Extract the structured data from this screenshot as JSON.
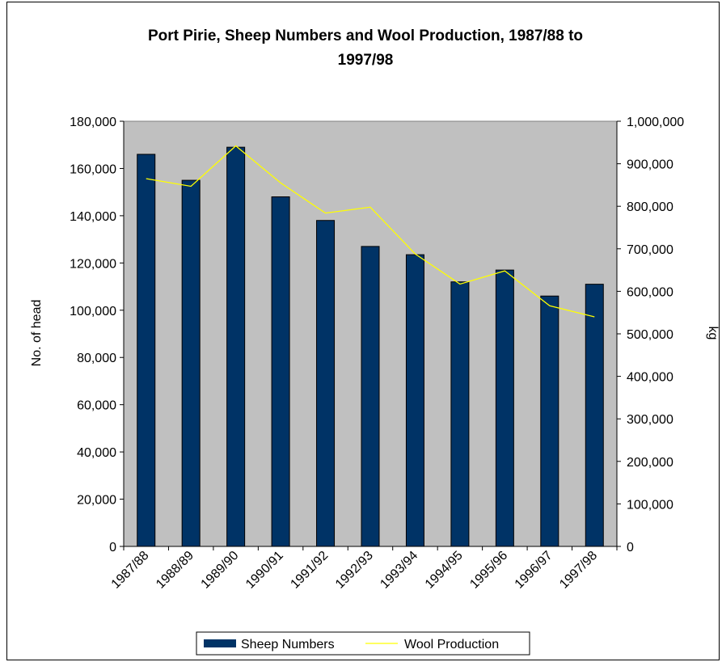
{
  "chart_data": {
    "type": "bar",
    "title_line1": "Port Pirie, Sheep Numbers and Wool Production, 1987/88 to",
    "title_line2": "1997/98",
    "categories": [
      "1987/88",
      "1988/89",
      "1989/90",
      "1990/91",
      "1991/92",
      "1992/93",
      "1993/94",
      "1994/95",
      "1995/96",
      "1996/97",
      "1997/98"
    ],
    "series": [
      {
        "name": "Sheep Numbers",
        "chart_type": "bar",
        "axis": "left",
        "color": "#003366",
        "values": [
          166000,
          155000,
          169000,
          148000,
          138000,
          127000,
          123500,
          112000,
          117000,
          106000,
          111000
        ]
      },
      {
        "name": "Wool Production",
        "chart_type": "line",
        "axis": "right",
        "color": "#ffff00",
        "values": [
          865000,
          847000,
          942000,
          855000,
          784000,
          798000,
          688000,
          617000,
          648000,
          566000,
          540000
        ]
      }
    ],
    "ylabel_left": "No. of head",
    "ylabel_right": "kg",
    "ylim_left": [
      0,
      180000
    ],
    "ylim_right": [
      0,
      1000000
    ],
    "yticks_left": [
      "0",
      "20,000",
      "40,000",
      "60,000",
      "80,000",
      "100,000",
      "120,000",
      "140,000",
      "160,000",
      "180,000"
    ],
    "yticks_right": [
      "0",
      "100,000",
      "200,000",
      "300,000",
      "400,000",
      "500,000",
      "600,000",
      "700,000",
      "800,000",
      "900,000",
      "1,000,000"
    ],
    "plot_background": "#c0c0c0",
    "grid": false,
    "legend_position": "bottom"
  }
}
